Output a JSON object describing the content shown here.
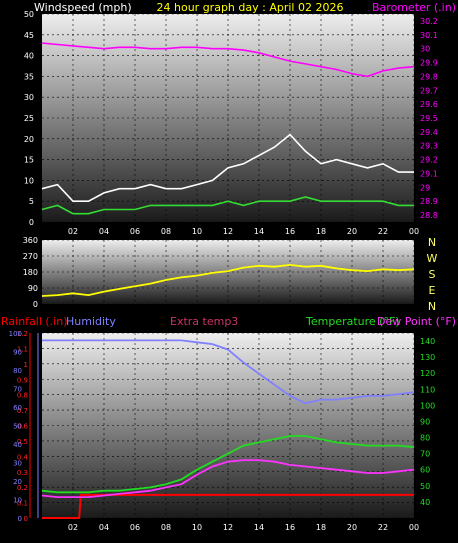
{
  "chart_data": [
    {
      "type": "line",
      "title": "24 hour graph day : April 02 2026",
      "left_axis_label": "Windspeed (mph)",
      "right_axis_label": "Barometer (.in)",
      "x_ticks": [
        "02",
        "04",
        "06",
        "08",
        "10",
        "12",
        "14",
        "16",
        "18",
        "20",
        "22",
        "00"
      ],
      "y_left_ticks": [
        "0",
        "5",
        "10",
        "15",
        "20",
        "25",
        "30",
        "35",
        "40",
        "45",
        "50"
      ],
      "y_left_range": [
        0,
        50
      ],
      "y_right_ticks": [
        "28.8",
        "28.9",
        "29",
        "29.1",
        "29.2",
        "29.3",
        "29.4",
        "29.5",
        "29.6",
        "29.7",
        "29.8",
        "29.9",
        "30",
        "30.1",
        "30.2"
      ],
      "y_right_range": [
        28.75,
        30.25
      ],
      "series": [
        {
          "color": "#ff00ff",
          "axis": "right",
          "x": [
            0,
            1,
            2,
            3,
            4,
            5,
            6,
            7,
            8,
            9,
            10,
            11,
            12,
            13,
            14,
            15,
            16,
            17,
            18,
            19,
            20,
            21,
            22,
            23,
            24
          ],
          "values": [
            30.04,
            30.03,
            30.02,
            30.01,
            30.0,
            30.01,
            30.01,
            30.0,
            30.0,
            30.01,
            30.01,
            30.0,
            30.0,
            29.99,
            29.97,
            29.94,
            29.91,
            29.89,
            29.87,
            29.85,
            29.82,
            29.8,
            29.84,
            29.86,
            29.87
          ]
        },
        {
          "color": "#33dd33",
          "axis": "left",
          "x": [
            0,
            1,
            2,
            3,
            4,
            5,
            6,
            7,
            8,
            9,
            10,
            11,
            12,
            13,
            14,
            15,
            16,
            17,
            18,
            19,
            20,
            21,
            22,
            23,
            24
          ],
          "values": [
            3,
            4,
            2,
            2,
            3,
            3,
            3,
            4,
            4,
            4,
            4,
            4,
            5,
            4,
            5,
            5,
            5,
            6,
            5,
            5,
            5,
            5,
            5,
            4,
            4
          ]
        }
      ],
      "gusts": {
        "color": "#ffffff",
        "x": [
          0,
          1,
          2,
          3,
          4,
          5,
          6,
          7,
          8,
          9,
          10,
          11,
          12,
          13,
          14,
          15,
          16,
          17,
          18,
          19,
          20,
          21,
          22,
          23,
          24
        ],
        "values": [
          8,
          9,
          5,
          5,
          7,
          8,
          8,
          9,
          8,
          8,
          9,
          10,
          13,
          14,
          16,
          18,
          21,
          17,
          14,
          15,
          14,
          13,
          14,
          12,
          12
        ]
      }
    },
    {
      "type": "line",
      "right_labels": [
        "N",
        "W",
        "S",
        "E",
        "N"
      ],
      "y_ticks": [
        "0",
        "90",
        "180",
        "270",
        "360"
      ],
      "y_range": [
        0,
        360
      ],
      "series": [
        {
          "color": "#ffff00",
          "x": [
            0,
            1,
            2,
            3,
            4,
            5,
            6,
            7,
            8,
            9,
            10,
            11,
            12,
            13,
            14,
            15,
            16,
            17,
            18,
            19,
            20,
            21,
            22,
            23,
            24
          ],
          "values": [
            45,
            50,
            60,
            50,
            70,
            85,
            100,
            115,
            135,
            150,
            160,
            175,
            185,
            205,
            215,
            210,
            220,
            210,
            215,
            200,
            190,
            185,
            195,
            190,
            195
          ]
        }
      ]
    },
    {
      "type": "line",
      "labels": {
        "rainfall": "Rainfall (.in)",
        "humidity": "Humidity",
        "extra_temp": "Extra temp3",
        "temperature": "Temperature (°F)",
        "dew_point": "Dew Point (°F)"
      },
      "x_ticks": [
        "02",
        "04",
        "06",
        "08",
        "10",
        "12",
        "14",
        "16",
        "18",
        "20",
        "22",
        "00"
      ],
      "rain_ticks": [
        "0",
        "0.1",
        "0.2",
        "0.3",
        "0.4",
        "0.5",
        "0.6",
        "0.7",
        "0.8",
        "0.9",
        "1",
        "1.1",
        "1.2"
      ],
      "humidity_ticks": [
        "0",
        "10",
        "20",
        "30",
        "40",
        "50",
        "60",
        "70",
        "80",
        "90",
        "100"
      ],
      "temp_ticks": [
        "40",
        "50",
        "60",
        "70",
        "80",
        "90",
        "100",
        "110",
        "120",
        "130",
        "140"
      ],
      "rain_range": [
        0,
        1.2
      ],
      "humidity_range": [
        0,
        100
      ],
      "temp_range": [
        30,
        145
      ],
      "series": [
        {
          "name": "Humidity",
          "color": "#8080ff",
          "axis": "humidity",
          "x": [
            0,
            1,
            2,
            3,
            4,
            5,
            6,
            7,
            8,
            9,
            10,
            11,
            12,
            13,
            14,
            15,
            16,
            17,
            18,
            19,
            20,
            21,
            22,
            23,
            24
          ],
          "values": [
            96,
            96,
            96,
            96,
            96,
            96,
            96,
            96,
            96,
            96,
            95,
            94,
            91,
            84,
            78,
            72,
            66,
            62,
            64,
            64,
            65,
            66,
            66,
            67,
            68
          ]
        },
        {
          "name": "Temperature (°F)",
          "color": "#22dd22",
          "axis": "temp",
          "x": [
            0,
            1,
            2,
            3,
            4,
            5,
            6,
            7,
            8,
            9,
            10,
            11,
            12,
            13,
            14,
            15,
            16,
            17,
            18,
            19,
            20,
            21,
            22,
            23,
            24
          ],
          "values": [
            47,
            46,
            46,
            46,
            47,
            47,
            48,
            49,
            51,
            54,
            60,
            65,
            70,
            75,
            77,
            79,
            81,
            81,
            79,
            77,
            76,
            75,
            75,
            75,
            74
          ]
        },
        {
          "name": "Dew Point (°F)",
          "color": "#ff33ff",
          "axis": "temp",
          "x": [
            0,
            1,
            2,
            3,
            4,
            5,
            6,
            7,
            8,
            9,
            10,
            11,
            12,
            13,
            14,
            15,
            16,
            17,
            18,
            19,
            20,
            21,
            22,
            23,
            24
          ],
          "values": [
            44,
            43,
            43,
            43,
            44,
            45,
            46,
            47,
            49,
            51,
            57,
            62,
            65,
            66,
            66,
            65,
            63,
            62,
            61,
            60,
            59,
            58,
            58,
            59,
            60
          ]
        }
      ],
      "rainfall": {
        "color": "#ff0000",
        "x": [
          0,
          2.4,
          2.5,
          24
        ],
        "values": [
          0.0,
          0.0,
          0.15,
          0.15
        ]
      }
    }
  ]
}
